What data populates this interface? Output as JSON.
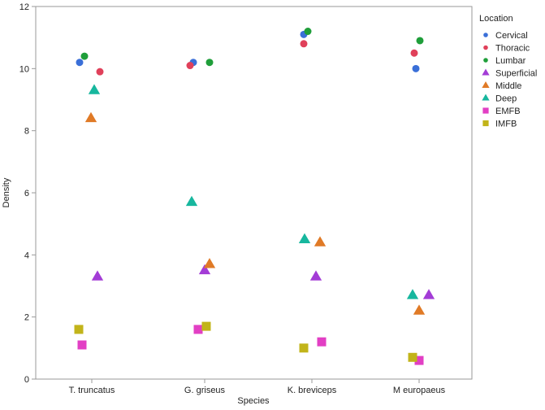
{
  "chart_data": {
    "type": "scatter",
    "xlabel": "Species",
    "ylabel": "Density",
    "ylim": [
      0,
      12
    ],
    "yticks": [
      0,
      2,
      4,
      6,
      8,
      10,
      12
    ],
    "categories": [
      "T. truncatus",
      "G. griseus",
      "K. breviceps",
      "M europaeus"
    ],
    "legend": {
      "title": "Location",
      "placement": "right"
    },
    "grid": false,
    "series": [
      {
        "name": "Cervical",
        "marker": "circle",
        "color": "#3a6fd8",
        "points": [
          {
            "category": "T. truncatus",
            "y": 10.2
          },
          {
            "category": "G. griseus",
            "y": 10.2
          },
          {
            "category": "K. breviceps",
            "y": 11.1
          },
          {
            "category": "M europaeus",
            "y": 10.0
          }
        ]
      },
      {
        "name": "Thoracic",
        "marker": "circle",
        "color": "#e0405a",
        "points": [
          {
            "category": "T. truncatus",
            "y": 9.9
          },
          {
            "category": "G. griseus",
            "y": 10.1
          },
          {
            "category": "K. breviceps",
            "y": 10.8
          },
          {
            "category": "M europaeus",
            "y": 10.5
          }
        ]
      },
      {
        "name": "Lumbar",
        "marker": "circle",
        "color": "#1f9e3a",
        "points": [
          {
            "category": "T. truncatus",
            "y": 10.4
          },
          {
            "category": "G. griseus",
            "y": 10.2
          },
          {
            "category": "K. breviceps",
            "y": 11.2
          },
          {
            "category": "M europaeus",
            "y": 10.9
          }
        ]
      },
      {
        "name": "Superficial",
        "marker": "triangle",
        "color": "#a33cd6",
        "points": [
          {
            "category": "T. truncatus",
            "y": 3.3
          },
          {
            "category": "G. griseus",
            "y": 3.5
          },
          {
            "category": "K. breviceps",
            "y": 3.3
          },
          {
            "category": "M europaeus",
            "y": 2.7
          }
        ]
      },
      {
        "name": "Middle",
        "marker": "triangle",
        "color": "#e07a26",
        "points": [
          {
            "category": "T. truncatus",
            "y": 8.4
          },
          {
            "category": "G. griseus",
            "y": 3.7
          },
          {
            "category": "K. breviceps",
            "y": 4.4
          },
          {
            "category": "M europaeus",
            "y": 2.2
          }
        ]
      },
      {
        "name": "Deep",
        "marker": "triangle",
        "color": "#17b79e",
        "points": [
          {
            "category": "T. truncatus",
            "y": 9.3
          },
          {
            "category": "G. griseus",
            "y": 5.7
          },
          {
            "category": "K. breviceps",
            "y": 4.5
          },
          {
            "category": "M europaeus",
            "y": 2.7
          }
        ]
      },
      {
        "name": "EMFB",
        "marker": "square",
        "color": "#e23fc4",
        "points": [
          {
            "category": "T. truncatus",
            "y": 1.1
          },
          {
            "category": "G. griseus",
            "y": 1.6
          },
          {
            "category": "K. breviceps",
            "y": 1.2
          },
          {
            "category": "M europaeus",
            "y": 0.6
          }
        ]
      },
      {
        "name": "IMFB",
        "marker": "square",
        "color": "#c2b41a",
        "points": [
          {
            "category": "T. truncatus",
            "y": 1.6
          },
          {
            "category": "G. griseus",
            "y": 1.7
          },
          {
            "category": "K. breviceps",
            "y": 1.0
          },
          {
            "category": "M europaeus",
            "y": 0.7
          }
        ]
      }
    ]
  }
}
